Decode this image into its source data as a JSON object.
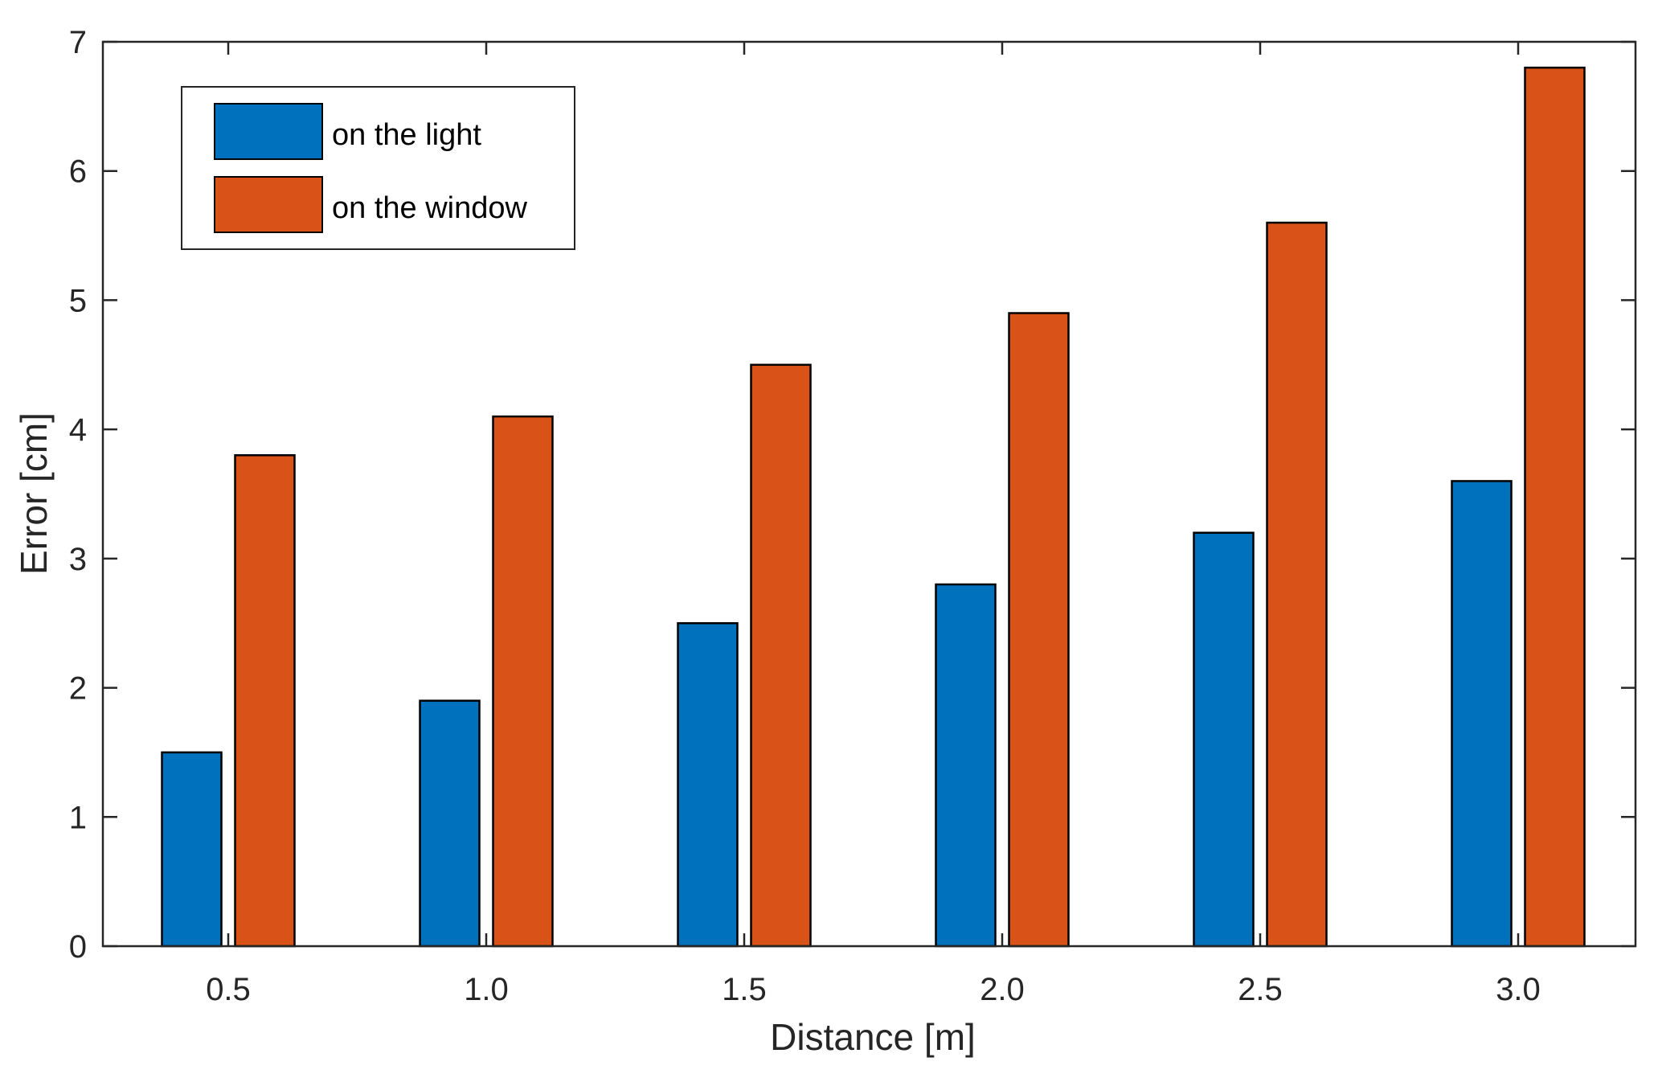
{
  "chart_data": {
    "type": "bar",
    "title": "",
    "xlabel": "Distance [m]",
    "ylabel": "Error [cm]",
    "categories": [
      "0.5",
      "1.0",
      "1.5",
      "2.0",
      "2.5",
      "3.0"
    ],
    "series": [
      {
        "name": "on the light",
        "color": "#0072BD",
        "values": [
          1.5,
          1.9,
          2.5,
          2.8,
          3.2,
          3.6
        ]
      },
      {
        "name": "on the window",
        "color": "#D95319",
        "values": [
          3.8,
          4.1,
          4.5,
          4.9,
          5.6,
          6.8
        ]
      }
    ],
    "ylim": [
      0,
      7
    ],
    "yticks": [
      "0",
      "1",
      "2",
      "3",
      "4",
      "5",
      "6",
      "7"
    ],
    "grid": false,
    "legend_position": "top-left"
  }
}
